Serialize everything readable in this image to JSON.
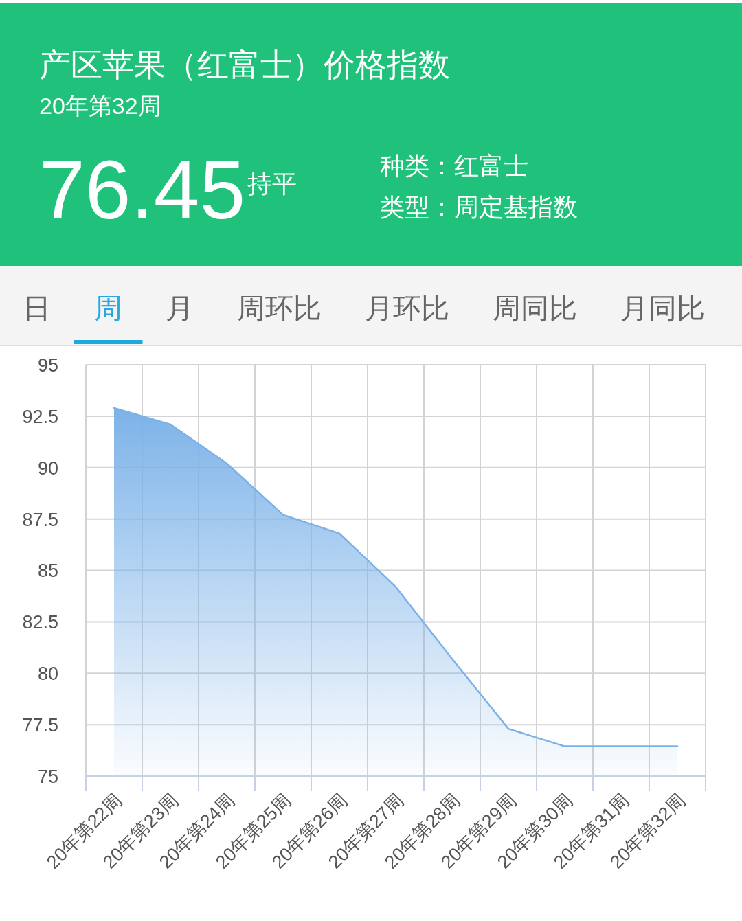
{
  "chart_data": {
    "type": "area",
    "title": "产区苹果（红富士）价格指数",
    "subtitle": "20年第32周",
    "categories": [
      "20年第22周",
      "20年第23周",
      "20年第24周",
      "20年第25周",
      "20年第26周",
      "20年第27周",
      "20年第28周",
      "20年第29周",
      "20年第30周",
      "20年第31周",
      "20年第32周"
    ],
    "values": [
      92.9,
      92.1,
      90.2,
      87.7,
      86.8,
      84.2,
      80.7,
      77.3,
      76.45,
      76.45,
      76.45
    ],
    "color": "#7ab1e8",
    "ylim": [
      75,
      95
    ],
    "yticks": [
      75,
      77.5,
      80,
      82.5,
      85,
      87.5,
      90,
      92.5,
      95
    ],
    "grid": true,
    "annotations": [
      "76.45",
      "持平",
      "种类：红富士",
      "类型：周定基指数",
      "日",
      "周",
      "月",
      "周环比",
      "月环比",
      "周同比",
      "月同比"
    ]
  }
}
